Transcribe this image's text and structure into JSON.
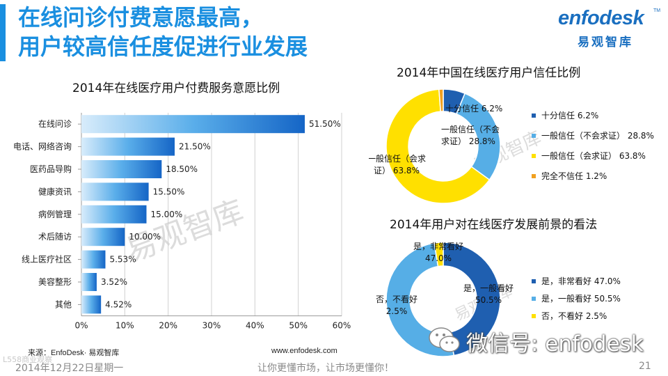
{
  "slide": {
    "title_line1": "在线问诊付费意愿最高，",
    "title_line2": "用户较高信任度促进行业发展",
    "logo_main": "enfodesk",
    "logo_tm": "TM",
    "logo_sub": "易观智库",
    "watermark1": "易观智库",
    "watermark2": "易观智库",
    "watermark3": "易观智库",
    "source": "来源：EnfoDesk· 易观智库",
    "website": "www.enfodesk.com",
    "date": "2014年12月22日星期一",
    "slogan": "让你更懂市场，让市场更懂你！",
    "page_number": "21",
    "wechat_text": "微信号: enfodesk",
    "corner_text": "L558商业观察"
  },
  "colors": {
    "accent": "#1a8fe0",
    "dark_blue": "#1f5fb0",
    "light_blue": "#56aee6",
    "yellow": "#ffe000",
    "orange": "#f0a020"
  },
  "chart_data": [
    {
      "type": "bar",
      "orientation": "horizontal",
      "title": "2014年在线医疗用户付费服务意愿比例",
      "categories": [
        "在线问诊",
        "电话、网络咨询",
        "医药品导购",
        "健康资讯",
        "病例管理",
        "术后随访",
        "线上医疗社区",
        "美容整形",
        "其他"
      ],
      "values": [
        51.5,
        21.5,
        18.5,
        15.5,
        15.0,
        10.0,
        5.53,
        3.52,
        4.52
      ],
      "value_labels": [
        "51.50%",
        "21.50%",
        "18.50%",
        "15.50%",
        "15.00%",
        "10.00%",
        "5.53%",
        "3.52%",
        "4.52%"
      ],
      "xlim": [
        0,
        60
      ],
      "xticks": [
        "0%",
        "10%",
        "20%",
        "30%",
        "40%",
        "50%",
        "60%"
      ],
      "grid": true
    },
    {
      "type": "pie",
      "style": "donut",
      "title": "2014年中国在线医疗用户信任比例",
      "labels": [
        "十分信任",
        "一般信任（不会求证）",
        "一般信任（会求证）",
        "完全不信任"
      ],
      "values": [
        6.2,
        28.8,
        63.8,
        1.2
      ],
      "colors": [
        "#1f5fb0",
        "#56aee6",
        "#ffe000",
        "#f0a020"
      ],
      "legend": [
        "十分信任  6.2%",
        "一般信任（不会求证） 28.8%",
        "一般信任（会求证） 63.8%",
        "完全不信任  1.2%"
      ],
      "data_labels": [
        [
          "十分信任  6.2%"
        ],
        [
          "一般信任（不会",
          "求证）  28.8%"
        ],
        [
          "一般信任（会求",
          "证）  63.8%"
        ]
      ],
      "legend_position": "right"
    },
    {
      "type": "pie",
      "style": "donut",
      "title": "2014年用户对在线医疗发展前景的看法",
      "labels": [
        "是，非常看好",
        "是，一般看好",
        "否，不看好"
      ],
      "values": [
        47.0,
        50.5,
        2.5
      ],
      "colors": [
        "#1f5fb0",
        "#56aee6",
        "#ffe000"
      ],
      "legend": [
        "是，非常看好  47.0%",
        "是，一般看好  50.5%",
        "否，不看好  2.5%"
      ],
      "data_labels": [
        [
          "是，非常看好",
          "47.0%"
        ],
        [
          "是，一般看好",
          "50.5%"
        ],
        [
          "否，不看好",
          "2.5%"
        ]
      ],
      "legend_position": "right"
    }
  ]
}
